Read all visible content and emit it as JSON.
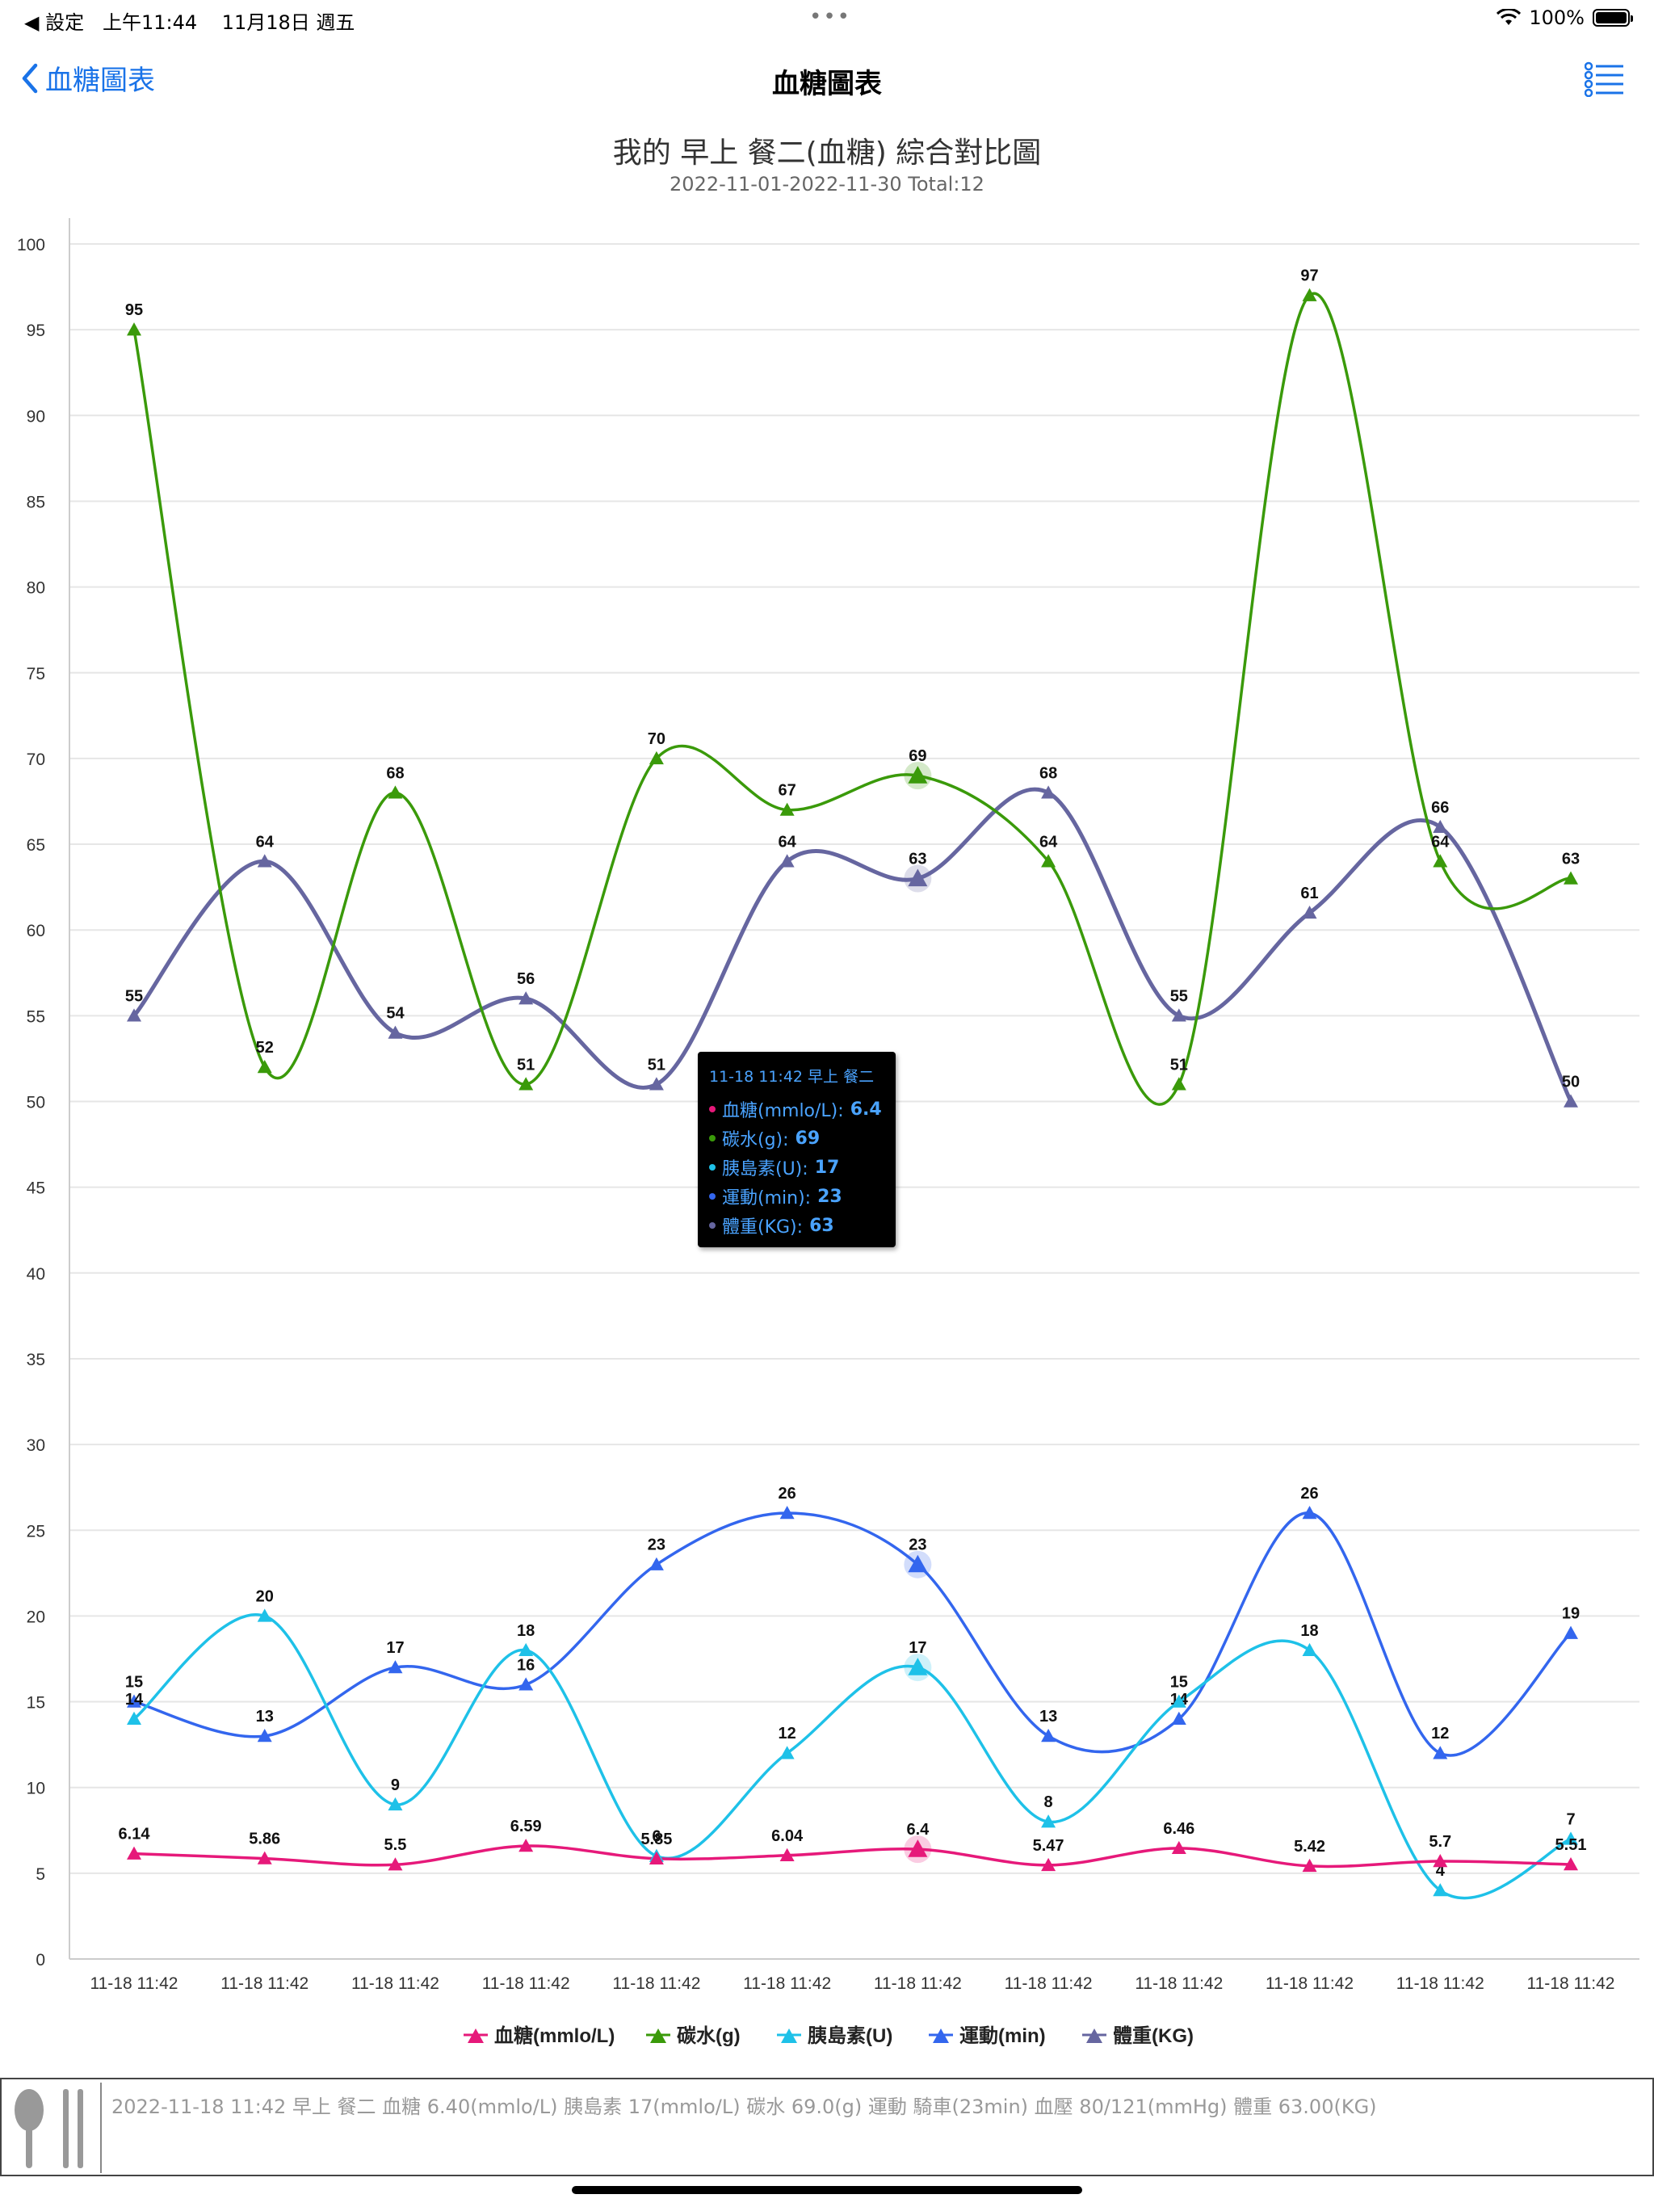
{
  "status": {
    "back_app": "◀ 設定",
    "time": "上午11:44",
    "date": "11月18日 週五",
    "battery": "100%"
  },
  "nav": {
    "back_label": "血糖圖表",
    "title": "血糖圖表"
  },
  "chart_header": {
    "title": "我的 早上 餐二(血糖) 綜合對比圖",
    "subtitle": "2022-11-01-2022-11-30 Total:12"
  },
  "chart_data": {
    "type": "line",
    "x": [
      "11-18 11:42",
      "11-18 11:42",
      "11-18 11:42",
      "11-18 11:42",
      "11-18 11:42",
      "11-18 11:42",
      "11-18 11:42",
      "11-18 11:42",
      "11-18 11:42",
      "11-18 11:42",
      "11-18 11:42",
      "11-18 11:42"
    ],
    "ylim": [
      0,
      100
    ],
    "yticks": [
      0,
      5,
      10,
      15,
      20,
      25,
      30,
      35,
      40,
      45,
      50,
      55,
      60,
      65,
      70,
      75,
      80,
      85,
      90,
      95,
      100
    ],
    "grid": true,
    "legend_position": "bottom",
    "highlight_index": 6,
    "series": [
      {
        "name": "血糖(mmlo/L)",
        "color": "#e6197a",
        "labels": [
          "6.14",
          "5.86",
          "5.5",
          "6.59",
          "5.85",
          "6.04",
          "6.4",
          "5.47",
          "6.46",
          "5.42",
          "5.7",
          "5.51"
        ],
        "values": [
          6.14,
          5.86,
          5.5,
          6.59,
          5.85,
          6.04,
          6.4,
          5.47,
          6.46,
          5.42,
          5.7,
          5.51
        ]
      },
      {
        "name": "碳水(g)",
        "color": "#3a9a0a",
        "labels": [
          "95",
          "52",
          "68",
          "51",
          "70",
          "67",
          "69",
          "64",
          "51",
          "97",
          "64",
          "63"
        ],
        "values": [
          95,
          52,
          68,
          51,
          70,
          67,
          69,
          64,
          51,
          97,
          64,
          63
        ]
      },
      {
        "name": "胰島素(U)",
        "color": "#1ec1e8",
        "labels": [
          "14",
          "20",
          "9",
          "18",
          "6",
          "12",
          "17",
          "8",
          "15",
          "18",
          "4",
          "7"
        ],
        "values": [
          14,
          20,
          9,
          18,
          6,
          12,
          17,
          8,
          15,
          18,
          4,
          7
        ]
      },
      {
        "name": "運動(min)",
        "color": "#3366ee",
        "labels": [
          "15",
          "13",
          "17",
          "16",
          "23",
          "26",
          "23",
          "13",
          "14",
          "26",
          "12",
          "19"
        ],
        "values": [
          15,
          13,
          17,
          16,
          23,
          26,
          23,
          13,
          14,
          26,
          12,
          19
        ]
      },
      {
        "name": "體重(KG)",
        "color": "#6666a0",
        "labels": [
          "55",
          "64",
          "54",
          "56",
          "51",
          "64",
          "63",
          "68",
          "55",
          "61",
          "66",
          "50"
        ],
        "values": [
          55,
          64,
          54,
          56,
          51,
          64,
          63,
          68,
          55,
          61,
          66,
          50
        ]
      }
    ]
  },
  "tooltip": {
    "header": "11-18 11:42 早上 餐二",
    "rows": [
      {
        "label": "血糖(mmlo/L):",
        "value": "6.4",
        "color": "#e6197a"
      },
      {
        "label": "碳水(g):",
        "value": "69",
        "color": "#3a9a0a"
      },
      {
        "label": "胰島素(U):",
        "value": "17",
        "color": "#1ec1e8"
      },
      {
        "label": "運動(min):",
        "value": "23",
        "color": "#3366ee"
      },
      {
        "label": "體重(KG):",
        "value": "63",
        "color": "#6666a0"
      }
    ]
  },
  "record": {
    "text": "2022-11-18 11:42 早上 餐二  血糖 6.40(mmlo/L) 胰島素 17(mmlo/L) 碳水 69.0(g) 運動 騎車(23min) 血壓 80/121(mmHg) 體重 63.00(KG)"
  },
  "icons": {
    "back": "chevron-left-icon",
    "menu": "list-menu-icon",
    "wifi": "wifi-icon",
    "battery": "battery-icon",
    "cutlery": "spoon-fork-icon"
  },
  "colors": {
    "accent": "#1a73e8"
  }
}
